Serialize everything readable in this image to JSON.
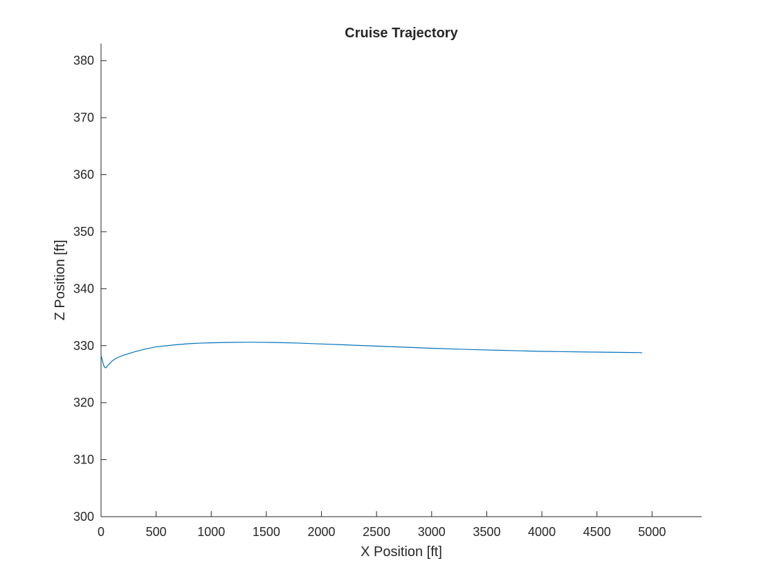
{
  "chart_data": {
    "type": "line",
    "title": "Cruise Trajectory",
    "xlabel": "X Position [ft]",
    "ylabel": "Z Position [ft]",
    "xlim": [
      0,
      5450
    ],
    "ylim": [
      300,
      383
    ],
    "xticks": [
      0,
      500,
      1000,
      1500,
      2000,
      2500,
      3000,
      3500,
      4000,
      4500,
      5000
    ],
    "yticks": [
      300,
      310,
      320,
      330,
      340,
      350,
      360,
      370,
      380
    ],
    "grid": false,
    "legend": "none",
    "colors": {
      "line": "#0072BD",
      "axes": "#262626",
      "text": "#262626",
      "title": "#000000"
    },
    "series": [
      {
        "x": [
          0,
          10,
          20,
          30,
          40,
          50,
          60,
          80,
          100,
          130,
          160,
          200,
          250,
          300,
          400,
          500,
          600,
          700,
          800,
          900,
          1000,
          1100,
          1200,
          1300,
          1400,
          1500,
          1600,
          1800,
          2000,
          2200,
          2400,
          2600,
          2800,
          3000,
          3200,
          3400,
          3600,
          3800,
          4000,
          4200,
          4400,
          4600,
          4800,
          4910
        ],
        "y": [
          328.3,
          327.6,
          326.8,
          326.3,
          326.1,
          326.2,
          326.5,
          326.9,
          327.3,
          327.7,
          328.0,
          328.3,
          328.6,
          328.9,
          329.4,
          329.8,
          330.0,
          330.2,
          330.35,
          330.45,
          330.5,
          330.55,
          330.58,
          330.6,
          330.6,
          330.58,
          330.55,
          330.45,
          330.3,
          330.15,
          330.0,
          329.85,
          329.7,
          329.55,
          329.42,
          329.3,
          329.2,
          329.1,
          329.0,
          328.95,
          328.9,
          328.85,
          328.8,
          328.78
        ]
      }
    ]
  }
}
